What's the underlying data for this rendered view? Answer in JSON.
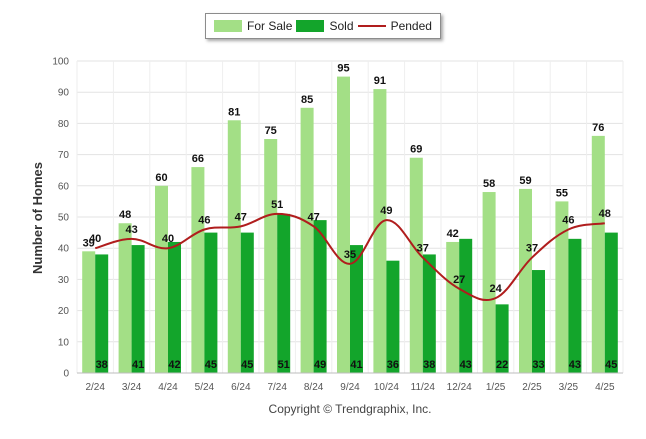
{
  "colors": {
    "for_sale": "#a3df86",
    "sold": "#13a52b",
    "pended": "#b01d1d",
    "grid": "#e3e3e3",
    "axis_text": "#555555"
  },
  "legend": {
    "for_sale": "For Sale",
    "sold": "Sold",
    "pended": "Pended",
    "placement": "top-center"
  },
  "footer": {
    "copyright": "Copyright © Trendgraphix, Inc."
  },
  "chart_data": {
    "type": "bar",
    "title": "",
    "xlabel": "",
    "ylabel": "Number of Homes",
    "ylim": [
      0,
      100
    ],
    "yticks": [
      "0",
      "10",
      "20",
      "30",
      "40",
      "50",
      "60",
      "70",
      "80",
      "90",
      "100"
    ],
    "grid": true,
    "categories": [
      "2/24",
      "3/24",
      "4/24",
      "5/24",
      "6/24",
      "7/24",
      "8/24",
      "9/24",
      "10/24",
      "11/24",
      "12/24",
      "1/25",
      "2/25",
      "3/25",
      "4/25"
    ],
    "series": [
      {
        "name": "For Sale",
        "type": "bar",
        "values": [
          39,
          48,
          60,
          66,
          81,
          75,
          85,
          95,
          91,
          69,
          42,
          58,
          59,
          55,
          76
        ]
      },
      {
        "name": "Sold",
        "type": "bar",
        "values": [
          38,
          41,
          42,
          45,
          45,
          51,
          49,
          41,
          36,
          38,
          43,
          22,
          33,
          43,
          45
        ]
      },
      {
        "name": "Pended",
        "type": "line",
        "values": [
          40,
          43,
          40,
          46,
          47,
          51,
          47,
          35,
          49,
          37,
          27,
          24,
          37,
          46,
          48
        ]
      }
    ]
  }
}
